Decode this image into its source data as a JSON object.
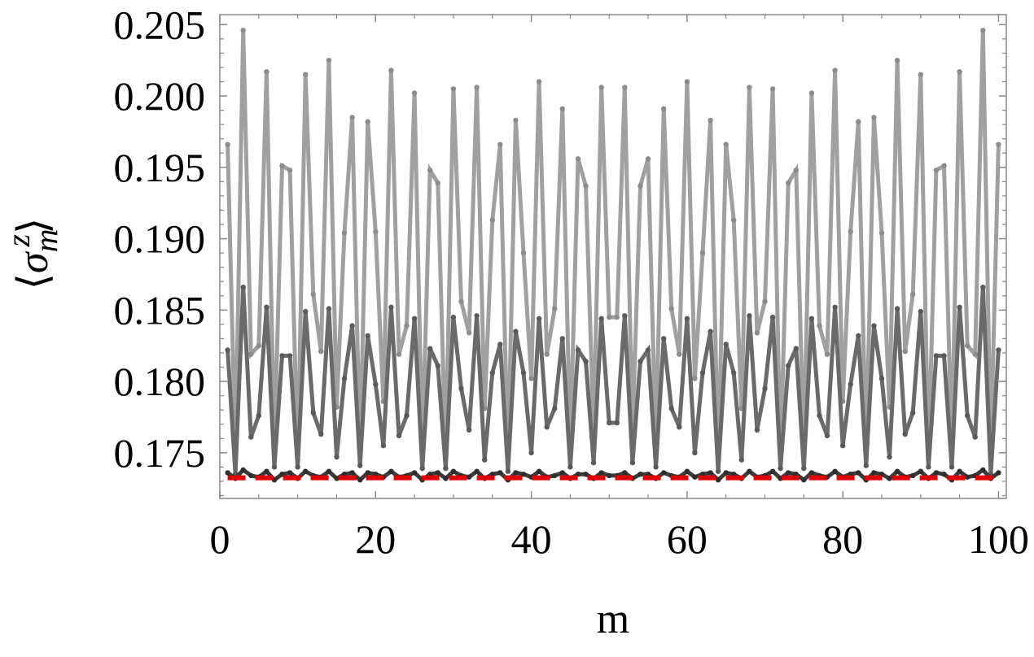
{
  "chart_data": {
    "type": "line",
    "xlabel": "m",
    "ylabel": {
      "open": "⟨",
      "sigma": "σ",
      "sup": "z",
      "sub": "m",
      "close": "⟩"
    },
    "xlim": [
      0,
      101
    ],
    "ylim": [
      0.1718,
      0.2057
    ],
    "xticks": [
      0,
      20,
      40,
      60,
      80,
      100
    ],
    "yticks": [
      0.175,
      0.18,
      0.185,
      0.19,
      0.195,
      0.2,
      0.205
    ],
    "ytick_labels": [
      "0.175",
      "0.180",
      "0.185",
      "0.190",
      "0.195",
      "0.200",
      "0.205"
    ],
    "x": [
      1,
      2,
      3,
      4,
      5,
      6,
      7,
      8,
      9,
      10,
      11,
      12,
      13,
      14,
      15,
      16,
      17,
      18,
      19,
      20,
      21,
      22,
      23,
      24,
      25,
      26,
      27,
      28,
      29,
      30,
      31,
      32,
      33,
      34,
      35,
      36,
      37,
      38,
      39,
      40,
      41,
      42,
      43,
      44,
      45,
      46,
      47,
      48,
      49,
      50,
      51,
      52,
      53,
      54,
      55,
      56,
      57,
      58,
      59,
      60,
      61,
      62,
      63,
      64,
      65,
      66,
      67,
      68,
      69,
      70,
      71,
      72,
      73,
      74,
      75,
      76,
      77,
      78,
      79,
      80,
      81,
      82,
      83,
      84,
      85,
      86,
      87,
      88,
      89,
      90,
      91,
      92,
      93,
      94,
      95,
      96,
      97,
      98,
      99,
      100
    ],
    "series": [
      {
        "color": "#a0a0a0",
        "dashed": false,
        "values": [
          0.1966,
          0.1751,
          0.2046,
          0.1819,
          0.1825,
          0.2017,
          0.1753,
          0.1951,
          0.1948,
          0.1745,
          0.2015,
          0.1861,
          0.1821,
          0.2025,
          0.1782,
          0.1904,
          0.1985,
          0.1749,
          0.1982,
          0.1905,
          0.1786,
          0.2018,
          0.1819,
          0.1839,
          0.2002,
          0.1751,
          0.1948,
          0.1939,
          0.1747,
          0.2005,
          0.1856,
          0.1834,
          0.2006,
          0.1781,
          0.1913,
          0.1966,
          0.1745,
          0.1983,
          0.189,
          0.1802,
          0.201,
          0.1819,
          0.1851,
          0.1991,
          0.1755,
          0.1956,
          0.1937,
          0.1765,
          0.2006,
          0.1845,
          0.1845,
          0.2006,
          0.1765,
          0.1937,
          0.1956,
          0.1755,
          0.1991,
          0.1851,
          0.1819,
          0.201,
          0.1802,
          0.189,
          0.1983,
          0.1745,
          0.1966,
          0.1913,
          0.1781,
          0.2006,
          0.1834,
          0.1856,
          0.2005,
          0.1747,
          0.1939,
          0.1948,
          0.1751,
          0.2002,
          0.1839,
          0.1819,
          0.2018,
          0.1786,
          0.1905,
          0.1982,
          0.1749,
          0.1985,
          0.1904,
          0.1782,
          0.2025,
          0.1821,
          0.1861,
          0.2015,
          0.1745,
          0.1948,
          0.1951,
          0.1753,
          0.2017,
          0.1825,
          0.1819,
          0.2046,
          0.1751,
          0.1966
        ]
      },
      {
        "color": "#6a6a6a",
        "dashed": false,
        "values": [
          0.1822,
          0.1735,
          0.1866,
          0.1761,
          0.1776,
          0.1852,
          0.174,
          0.1818,
          0.1818,
          0.174,
          0.1849,
          0.1778,
          0.1763,
          0.1851,
          0.1747,
          0.1802,
          0.1839,
          0.1741,
          0.1832,
          0.1798,
          0.1755,
          0.1852,
          0.1762,
          0.1776,
          0.1844,
          0.1739,
          0.1823,
          0.1811,
          0.1739,
          0.1845,
          0.1795,
          0.1766,
          0.1846,
          0.1745,
          0.1806,
          0.1826,
          0.1737,
          0.1835,
          0.1806,
          0.175,
          0.1844,
          0.1768,
          0.1781,
          0.183,
          0.174,
          0.1822,
          0.1814,
          0.1743,
          0.1844,
          0.1771,
          0.1771,
          0.1846,
          0.1743,
          0.1814,
          0.1822,
          0.174,
          0.183,
          0.1781,
          0.1768,
          0.1844,
          0.175,
          0.1806,
          0.1835,
          0.1737,
          0.1826,
          0.1806,
          0.1745,
          0.1846,
          0.1766,
          0.1795,
          0.1845,
          0.1739,
          0.1811,
          0.1823,
          0.1739,
          0.1844,
          0.1776,
          0.1762,
          0.1852,
          0.1755,
          0.1798,
          0.1832,
          0.1741,
          0.1839,
          0.1802,
          0.1747,
          0.1851,
          0.1763,
          0.1778,
          0.1849,
          0.174,
          0.1818,
          0.1818,
          0.174,
          0.1852,
          0.1776,
          0.1761,
          0.1866,
          0.1735,
          0.1822
        ]
      },
      {
        "color": "#3c3c3c",
        "dashed": false,
        "values": [
          0.1736,
          0.1732,
          0.1738,
          0.1734,
          0.1733,
          0.1737,
          0.1731,
          0.1735,
          0.1736,
          0.1732,
          0.1737,
          0.1734,
          0.1733,
          0.1737,
          0.1732,
          0.1735,
          0.1736,
          0.1731,
          0.1736,
          0.1735,
          0.1733,
          0.1737,
          0.1733,
          0.1734,
          0.1736,
          0.1731,
          0.1735,
          0.1736,
          0.1732,
          0.1737,
          0.1734,
          0.1733,
          0.1737,
          0.1732,
          0.1735,
          0.1736,
          0.1731,
          0.1736,
          0.1735,
          0.1733,
          0.1737,
          0.1733,
          0.1734,
          0.1736,
          0.1732,
          0.1735,
          0.1735,
          0.1732,
          0.1736,
          0.1734,
          0.1734,
          0.1736,
          0.1732,
          0.1735,
          0.1735,
          0.1732,
          0.1736,
          0.1734,
          0.1733,
          0.1737,
          0.1733,
          0.1735,
          0.1736,
          0.1731,
          0.1736,
          0.1735,
          0.1732,
          0.1737,
          0.1733,
          0.1734,
          0.1737,
          0.1732,
          0.1736,
          0.1735,
          0.1731,
          0.1736,
          0.1734,
          0.1733,
          0.1737,
          0.1733,
          0.1735,
          0.1736,
          0.1731,
          0.1736,
          0.1735,
          0.1732,
          0.1737,
          0.1733,
          0.1734,
          0.1737,
          0.1732,
          0.1736,
          0.1735,
          0.1731,
          0.1737,
          0.1733,
          0.1734,
          0.1738,
          0.1732,
          0.1736
        ]
      },
      {
        "color": "#e00000",
        "dashed": true,
        "values": [
          0.17325,
          0.17325,
          0.17325,
          0.17325,
          0.17325,
          0.17325,
          0.17325,
          0.17325,
          0.17325,
          0.17325,
          0.17325,
          0.17325,
          0.17325,
          0.17325,
          0.17325,
          0.17325,
          0.17325,
          0.17325,
          0.17325,
          0.17325,
          0.17325,
          0.17325,
          0.17325,
          0.17325,
          0.17325,
          0.17325,
          0.17325,
          0.17325,
          0.17325,
          0.17325,
          0.17325,
          0.17325,
          0.17325,
          0.17325,
          0.17325,
          0.17325,
          0.17325,
          0.17325,
          0.17325,
          0.17325,
          0.17325,
          0.17325,
          0.17325,
          0.17325,
          0.17325,
          0.17325,
          0.17325,
          0.17325,
          0.17325,
          0.17325,
          0.17325,
          0.17325,
          0.17325,
          0.17325,
          0.17325,
          0.17325,
          0.17325,
          0.17325,
          0.17325,
          0.17325,
          0.17325,
          0.17325,
          0.17325,
          0.17325,
          0.17325,
          0.17325,
          0.17325,
          0.17325,
          0.17325,
          0.17325,
          0.17325,
          0.17325,
          0.17325,
          0.17325,
          0.17325,
          0.17325,
          0.17325,
          0.17325,
          0.17325,
          0.17325,
          0.17325,
          0.17325,
          0.17325,
          0.17325,
          0.17325,
          0.17325,
          0.17325,
          0.17325,
          0.17325,
          0.17325,
          0.17325,
          0.17325,
          0.17325,
          0.17325,
          0.17325,
          0.17325,
          0.17325,
          0.17325,
          0.17325,
          0.17325
        ]
      }
    ]
  }
}
